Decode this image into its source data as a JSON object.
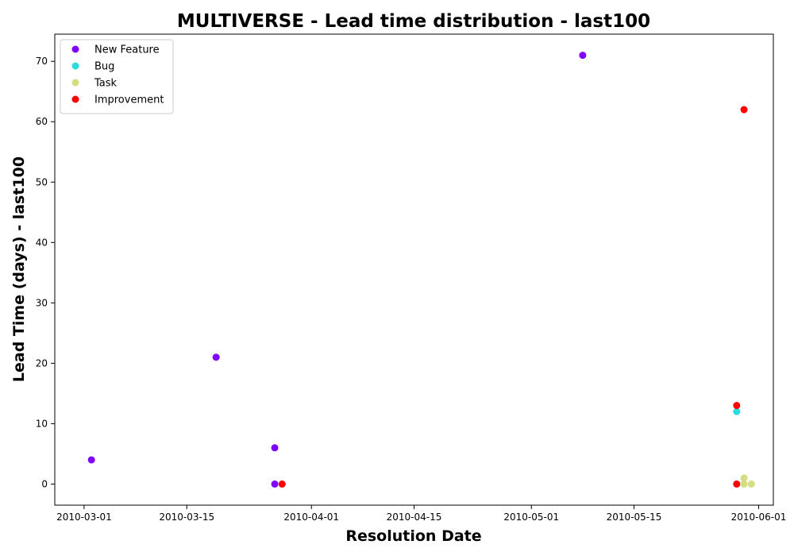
{
  "chart_data": {
    "type": "scatter",
    "title": "MULTIVERSE - Lead time distribution - last100",
    "xlabel": "Resolution Date",
    "ylabel": "Lead Time (days) - last100",
    "x_is_date": true,
    "xlim": [
      "2010-02-25",
      "2010-06-03"
    ],
    "ylim": [
      -3.5,
      74.5
    ],
    "xticks": [
      "2010-03-01",
      "2010-03-15",
      "2010-04-01",
      "2010-04-15",
      "2010-05-01",
      "2010-05-15",
      "2010-06-01"
    ],
    "yticks": [
      0,
      10,
      20,
      30,
      40,
      50,
      60,
      70
    ],
    "grid": false,
    "legend_position": "top-left",
    "series": [
      {
        "name": "New Feature",
        "color": "#7f00ff",
        "points": [
          {
            "x": "2010-03-02",
            "y": 4
          },
          {
            "x": "2010-03-19",
            "y": 21
          },
          {
            "x": "2010-03-27",
            "y": 6
          },
          {
            "x": "2010-03-27",
            "y": 0
          },
          {
            "x": "2010-05-08",
            "y": 71
          }
        ]
      },
      {
        "name": "Bug",
        "color": "#2adddd",
        "points": [
          {
            "x": "2010-05-29",
            "y": 12
          }
        ]
      },
      {
        "name": "Task",
        "color": "#d4dd80",
        "points": [
          {
            "x": "2010-05-30",
            "y": 0
          },
          {
            "x": "2010-05-30",
            "y": 1
          },
          {
            "x": "2010-05-31",
            "y": 0
          }
        ]
      },
      {
        "name": "Improvement",
        "color": "#ff0000",
        "points": [
          {
            "x": "2010-03-28",
            "y": 0
          },
          {
            "x": "2010-05-29",
            "y": 13
          },
          {
            "x": "2010-05-29",
            "y": 0
          },
          {
            "x": "2010-05-30",
            "y": 62
          }
        ]
      }
    ]
  }
}
